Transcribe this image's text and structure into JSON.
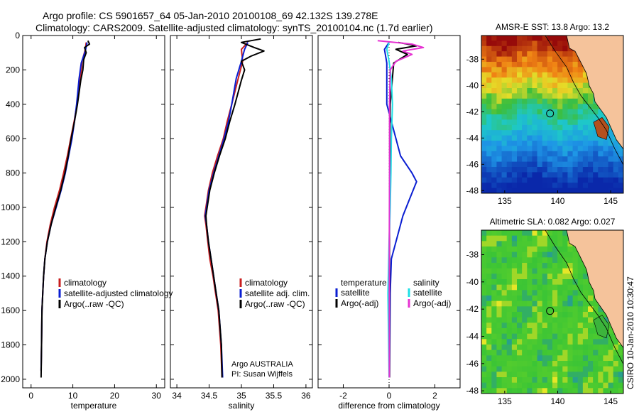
{
  "header": {
    "line1": "Argo profile: CS 5901657_64 05-Jan-2010 20100108_69 42.132S 139.278E",
    "line2": "Climatology: CARS2009. Satellite-adjusted climatology: synTS_20100104.nc (1.7d earlier)"
  },
  "side_label": "CSIRO 10-Jan-2010 10:30:47",
  "colors": {
    "climatology": "#c81e1e",
    "satellite": "#0a1ed2",
    "argo": "#000000",
    "salinity_satellite": "#1ee0e6",
    "salinity_argo": "#e632d2",
    "land": "#f5c39b"
  },
  "chart_data": [
    {
      "type": "line",
      "xlabel": "temperature",
      "ylabel": "",
      "xlim": [
        -2,
        32
      ],
      "ylim": [
        2050,
        0
      ],
      "xticks": [
        0,
        10,
        20,
        30
      ],
      "yticks": [
        0,
        200,
        400,
        600,
        800,
        1000,
        1200,
        1400,
        1600,
        1800,
        2000
      ],
      "legend": [
        "climatology",
        "satellite-adjusted climatology",
        "Argo(..raw -QC)"
      ],
      "series": [
        {
          "name": "climatology",
          "color_key": "climatology",
          "points": [
            [
              13.2,
              40
            ],
            [
              13.0,
              80
            ],
            [
              12.2,
              150
            ],
            [
              11.8,
              250
            ],
            [
              11.0,
              400
            ],
            [
              10.3,
              500
            ],
            [
              9.5,
              600
            ],
            [
              8.7,
              700
            ],
            [
              7.8,
              800
            ],
            [
              6.8,
              900
            ],
            [
              5.6,
              1000
            ],
            [
              4.6,
              1100
            ],
            [
              3.8,
              1200
            ],
            [
              3.3,
              1300
            ],
            [
              3.0,
              1400
            ],
            [
              2.8,
              1500
            ],
            [
              2.6,
              1600
            ],
            [
              2.5,
              1800
            ],
            [
              2.4,
              1950
            ]
          ]
        },
        {
          "name": "satellite-adjusted climatology",
          "color_key": "satellite",
          "points": [
            [
              13.4,
              40
            ],
            [
              13.0,
              90
            ],
            [
              12.0,
              160
            ],
            [
              11.5,
              250
            ],
            [
              10.9,
              400
            ],
            [
              10.4,
              500
            ],
            [
              9.8,
              600
            ],
            [
              9.0,
              700
            ],
            [
              8.2,
              800
            ],
            [
              7.2,
              900
            ],
            [
              6.0,
              1000
            ],
            [
              4.8,
              1100
            ],
            [
              3.9,
              1200
            ],
            [
              3.3,
              1300
            ],
            [
              3.0,
              1400
            ],
            [
              2.8,
              1500
            ],
            [
              2.6,
              1600
            ],
            [
              2.5,
              1800
            ],
            [
              2.4,
              1950
            ]
          ]
        },
        {
          "name": "Argo(..raw -QC)",
          "color_key": "argo",
          "points": [
            [
              13.6,
              30
            ],
            [
              14.0,
              50
            ],
            [
              12.8,
              70
            ],
            [
              13.2,
              100
            ],
            [
              12.6,
              140
            ],
            [
              12.4,
              200
            ],
            [
              11.9,
              260
            ],
            [
              11.1,
              400
            ],
            [
              10.4,
              500
            ],
            [
              9.6,
              600
            ],
            [
              8.9,
              700
            ],
            [
              8.1,
              800
            ],
            [
              7.1,
              900
            ],
            [
              5.9,
              1000
            ],
            [
              4.8,
              1100
            ],
            [
              3.9,
              1200
            ],
            [
              3.3,
              1300
            ],
            [
              3.0,
              1400
            ],
            [
              2.8,
              1500
            ],
            [
              2.6,
              1600
            ],
            [
              2.5,
              1800
            ],
            [
              2.4,
              1990
            ]
          ]
        }
      ]
    },
    {
      "type": "line",
      "xlabel": "salinity",
      "ylabel": "",
      "xlim": [
        33.9,
        36.1
      ],
      "ylim": [
        2050,
        0
      ],
      "xticks": [
        34,
        34.5,
        35,
        35.5,
        36
      ],
      "legend": [
        "climatology",
        "satellite adj. clim.",
        "Argo(..raw -QC)"
      ],
      "annotation": [
        "Argo AUSTRALIA",
        "PI: Susan Wijffels"
      ],
      "series": [
        {
          "name": "climatology",
          "color_key": "climatology",
          "points": [
            [
              35.1,
              40
            ],
            [
              35.0,
              80
            ],
            [
              35.02,
              150
            ],
            [
              34.95,
              250
            ],
            [
              34.85,
              400
            ],
            [
              34.78,
              500
            ],
            [
              34.72,
              600
            ],
            [
              34.63,
              700
            ],
            [
              34.55,
              800
            ],
            [
              34.49,
              900
            ],
            [
              34.45,
              1000
            ],
            [
              34.43,
              1050
            ],
            [
              34.45,
              1100
            ],
            [
              34.48,
              1200
            ],
            [
              34.51,
              1300
            ],
            [
              34.56,
              1400
            ],
            [
              34.6,
              1500
            ],
            [
              34.64,
              1600
            ],
            [
              34.68,
              1800
            ],
            [
              34.7,
              1990
            ]
          ]
        },
        {
          "name": "satellite adj. clim.",
          "color_key": "satellite",
          "points": [
            [
              35.1,
              40
            ],
            [
              35.05,
              80
            ],
            [
              35.0,
              150
            ],
            [
              34.92,
              250
            ],
            [
              34.85,
              400
            ],
            [
              34.8,
              500
            ],
            [
              34.73,
              600
            ],
            [
              34.65,
              700
            ],
            [
              34.57,
              800
            ],
            [
              34.5,
              900
            ],
            [
              34.46,
              1000
            ],
            [
              34.44,
              1050
            ],
            [
              34.46,
              1100
            ],
            [
              34.49,
              1200
            ],
            [
              34.53,
              1300
            ],
            [
              34.57,
              1400
            ],
            [
              34.61,
              1500
            ],
            [
              34.65,
              1600
            ],
            [
              34.69,
              1800
            ],
            [
              34.71,
              1990
            ]
          ]
        },
        {
          "name": "Argo(..raw -QC)",
          "color_key": "argo",
          "points": [
            [
              35.3,
              20
            ],
            [
              35.0,
              40
            ],
            [
              35.2,
              70
            ],
            [
              35.35,
              90
            ],
            [
              35.15,
              120
            ],
            [
              35.0,
              150
            ],
            [
              35.05,
              200
            ],
            [
              35.0,
              260
            ],
            [
              34.9,
              400
            ],
            [
              34.82,
              500
            ],
            [
              34.75,
              600
            ],
            [
              34.66,
              700
            ],
            [
              34.58,
              800
            ],
            [
              34.51,
              900
            ],
            [
              34.47,
              1000
            ],
            [
              34.45,
              1050
            ],
            [
              34.46,
              1100
            ],
            [
              34.49,
              1200
            ],
            [
              34.53,
              1300
            ],
            [
              34.57,
              1400
            ],
            [
              34.61,
              1500
            ],
            [
              34.65,
              1600
            ],
            [
              34.69,
              1800
            ],
            [
              34.7,
              1990
            ]
          ]
        }
      ]
    },
    {
      "type": "line",
      "xlabel": "difference from climatology",
      "ylabel": "",
      "xlim": [
        -3.1,
        3.1
      ],
      "ylim": [
        2050,
        0
      ],
      "xticks": [
        -2,
        0,
        2
      ],
      "legend_groups": [
        {
          "title": "temperature",
          "entries": [
            "satellite",
            "Argo(-adj)"
          ]
        },
        {
          "title": "salinity",
          "entries": [
            "satellite",
            "Argo(-adj)"
          ]
        }
      ],
      "series": [
        {
          "name": "temperature satellite",
          "color_key": "satellite",
          "points": [
            [
              0.0,
              40
            ],
            [
              -0.2,
              80
            ],
            [
              -0.1,
              160
            ],
            [
              -0.1,
              400
            ],
            [
              0.1,
              500
            ],
            [
              0.3,
              600
            ],
            [
              0.5,
              700
            ],
            [
              1.0,
              800
            ],
            [
              1.2,
              850
            ],
            [
              0.9,
              950
            ],
            [
              0.6,
              1050
            ],
            [
              0.3,
              1200
            ],
            [
              0.1,
              1300
            ],
            [
              0.05,
              1500
            ],
            [
              0.03,
              1800
            ],
            [
              0.02,
              1990
            ]
          ]
        },
        {
          "name": "temperature Argo(-adj)",
          "color_key": "argo",
          "points": [
            [
              0.4,
              40
            ],
            [
              1.2,
              60
            ],
            [
              0.3,
              80
            ],
            [
              0.8,
              110
            ],
            [
              0.2,
              160
            ],
            [
              0.05,
              400
            ],
            [
              0.03,
              600
            ],
            [
              0.03,
              800
            ],
            [
              0.02,
              1000
            ],
            [
              0.02,
              1200
            ],
            [
              0.02,
              1500
            ],
            [
              0.02,
              1800
            ],
            [
              0.02,
              1990
            ]
          ]
        },
        {
          "name": "salinity satellite",
          "color_key": "salinity_satellite",
          "points": [
            [
              0.0,
              40
            ],
            [
              -0.1,
              80
            ],
            [
              0.0,
              150
            ],
            [
              0.1,
              250
            ],
            [
              0.15,
              400
            ],
            [
              0.1,
              600
            ],
            [
              0.08,
              800
            ],
            [
              0.05,
              1000
            ],
            [
              0.0,
              1200
            ],
            [
              -0.05,
              1500
            ],
            [
              -0.02,
              1800
            ],
            [
              0.0,
              1990
            ]
          ]
        },
        {
          "name": "salinity Argo(-adj)",
          "color_key": "salinity_argo",
          "points": [
            [
              -0.5,
              30
            ],
            [
              1.0,
              50
            ],
            [
              1.5,
              70
            ],
            [
              0.6,
              90
            ],
            [
              1.0,
              110
            ],
            [
              0.3,
              150
            ],
            [
              0.05,
              200
            ],
            [
              0.02,
              400
            ],
            [
              0.02,
              800
            ],
            [
              0.01,
              1200
            ],
            [
              0.01,
              1600
            ],
            [
              0.01,
              1990
            ]
          ]
        }
      ]
    },
    {
      "type": "heatmap",
      "title": "AMSR-E SST: 13.8  Argo: 13.2",
      "xticks": [
        135,
        140,
        145
      ],
      "yticks": [
        -38,
        -40,
        -42,
        -44,
        -46,
        -48
      ],
      "xlim": [
        132.8,
        146.2
      ],
      "ylim": [
        -48.2,
        -36.2
      ],
      "argo_position": [
        139.278,
        -42.132
      ]
    },
    {
      "type": "heatmap",
      "title": "Altimetric SLA: 0.082  Argo: 0.027",
      "xticks": [
        135,
        140,
        145
      ],
      "yticks": [
        -38,
        -40,
        -42,
        -44,
        -46,
        -48
      ],
      "xlim": [
        132.8,
        146.2
      ],
      "ylim": [
        -48.2,
        -36.2
      ],
      "argo_position": [
        139.278,
        -42.132
      ]
    }
  ]
}
